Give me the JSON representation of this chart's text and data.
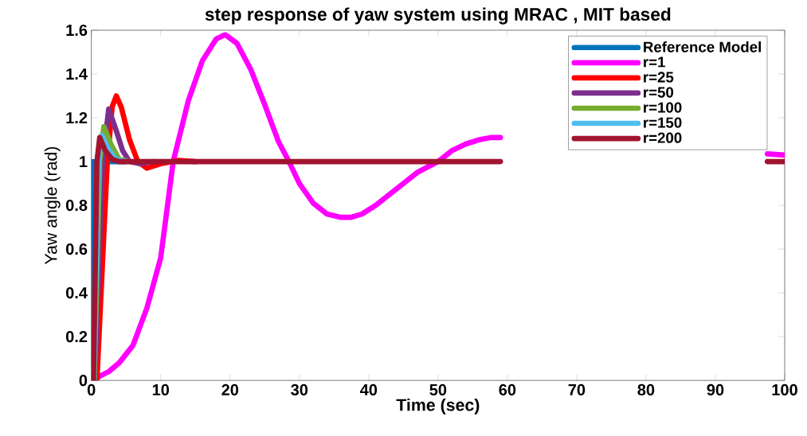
{
  "chart_data": {
    "type": "line",
    "title": "step response of  yaw system using MRAC , MIT based",
    "xlabel": "Time (sec)",
    "ylabel": "Yaw angle (rad)",
    "xlim": [
      0,
      100
    ],
    "ylim": [
      0,
      1.6
    ],
    "xticks": [
      0,
      10,
      20,
      30,
      40,
      50,
      60,
      70,
      80,
      90,
      100
    ],
    "yticks": [
      0,
      0.2,
      0.4,
      0.6,
      0.8,
      1,
      1.2,
      1.4,
      1.6
    ],
    "legend": "top right",
    "marker": "none",
    "series": [
      {
        "name": "Reference Model",
        "color": "#0072bd",
        "x": [
          0,
          0.2,
          5
        ],
        "values": [
          0,
          1.0,
          1.0
        ]
      },
      {
        "name": "r=1",
        "color": "#ff00ff",
        "x": [
          0,
          2.5,
          4,
          6,
          8,
          10,
          11.8,
          14,
          16,
          18,
          19.3,
          21,
          23,
          25,
          27,
          28.5,
          30,
          32,
          34,
          36,
          37.4,
          39,
          41,
          43,
          45,
          47,
          50,
          52,
          54,
          56,
          57.7,
          59,
          78,
          97.5,
          100
        ],
        "values": [
          0,
          0.04,
          0.08,
          0.16,
          0.33,
          0.56,
          1.0,
          1.28,
          1.46,
          1.56,
          1.58,
          1.54,
          1.42,
          1.26,
          1.09,
          1.0,
          0.9,
          0.81,
          0.76,
          0.745,
          0.745,
          0.76,
          0.8,
          0.85,
          0.9,
          0.95,
          1.0,
          1.05,
          1.08,
          1.1,
          1.11,
          1.11,
          null,
          1.035,
          1.03
        ]
      },
      {
        "name": "r=25",
        "color": "#ff0000",
        "x": [
          0,
          0.8,
          2.3,
          3,
          3.6,
          4.3,
          5.5,
          6.7,
          8,
          10,
          12.5,
          15
        ],
        "values": [
          0,
          0,
          1.0,
          1.25,
          1.3,
          1.25,
          1.1,
          1.0,
          0.97,
          0.99,
          1.005,
          1.0
        ]
      },
      {
        "name": "r=50",
        "color": "#7e2f8e",
        "x": [
          0,
          0.5,
          1.6,
          2.5,
          3.5,
          4.5,
          5.5,
          7,
          9
        ],
        "values": [
          0,
          0,
          1.0,
          1.24,
          1.15,
          1.05,
          1.0,
          0.99,
          1.0
        ]
      },
      {
        "name": "r=100",
        "color": "#77ac30",
        "x": [
          0,
          0.4,
          1.2,
          1.8,
          2.8,
          4,
          5.5
        ],
        "values": [
          0,
          0,
          1.0,
          1.16,
          1.08,
          1.01,
          1.0
        ]
      },
      {
        "name": "r=150",
        "color": "#4dbeee",
        "x": [
          0,
          0.35,
          1.0,
          1.5,
          2.4,
          3.5,
          5
        ],
        "values": [
          0,
          0,
          1.0,
          1.12,
          1.06,
          1.01,
          1.0
        ]
      },
      {
        "name": "r=200",
        "color": "#a2142f",
        "x": [
          0,
          0.3,
          0.8,
          1.2,
          2,
          3,
          4,
          59,
          78,
          97.5,
          100
        ],
        "values": [
          0,
          0,
          1.0,
          1.11,
          1.05,
          1.01,
          1.0,
          1.0,
          null,
          1.0,
          1.0
        ]
      }
    ]
  }
}
